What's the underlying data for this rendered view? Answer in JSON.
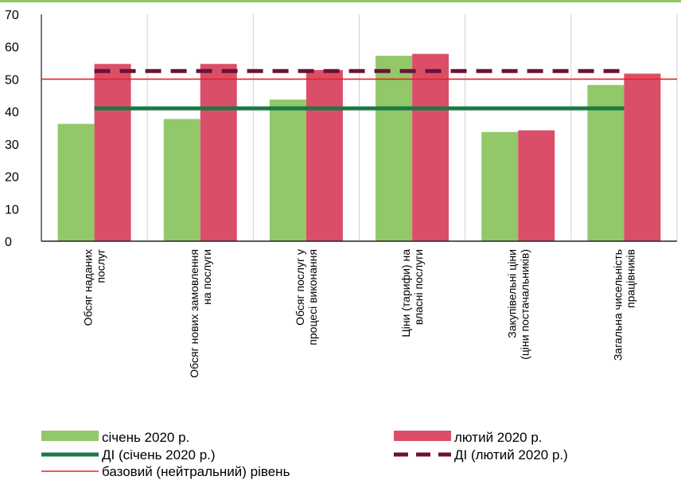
{
  "chart_data": {
    "type": "bar",
    "categories": [
      [
        "Обсяг наданих",
        "послуг"
      ],
      [
        "Обсяг нових замовлення",
        "на послуги"
      ],
      [
        "Обсяг послуг у",
        "процесі виконання"
      ],
      [
        "Ціни (тарифи) на",
        "власні послуги"
      ],
      [
        "Закупівельні ціни",
        "(ціни постачальників)"
      ],
      [
        "Загальна чисельність",
        "працівників"
      ]
    ],
    "series": [
      {
        "name": "січень 2020 р.",
        "values": [
          36.2,
          37.7,
          43.7,
          57.2,
          33.7,
          48.2
        ]
      },
      {
        "name": "лютий 2020 р.",
        "values": [
          54.7,
          54.7,
          52.8,
          57.8,
          34.2,
          51.7
        ]
      }
    ],
    "reference_lines": [
      {
        "name": "ДІ (січень 2020 р.)",
        "value": 41.0
      },
      {
        "name": "ДІ (лютий 2020 р.)",
        "value": 52.5
      },
      {
        "name": "базовий (нейтральний) рівень",
        "value": 50
      }
    ],
    "ylim": [
      0,
      70
    ],
    "yticks": [
      0,
      10,
      20,
      30,
      40,
      50,
      60,
      70
    ],
    "grid": "vertical",
    "legend_position": "bottom",
    "colors": {
      "jan": "#92c86a",
      "feb": "#db4e69",
      "di_jan": "#1b7a44",
      "di_feb": "#6b1236",
      "baseline": "#e8231c",
      "grid": "#d0d0d0",
      "top_band": "#8fc463"
    }
  }
}
